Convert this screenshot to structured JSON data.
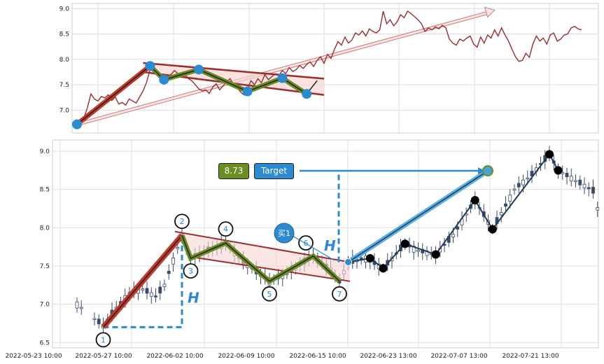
{
  "chart_data": [
    {
      "type": "line",
      "panel": "top",
      "ylim": [
        6.55,
        9.1
      ],
      "yticks": [
        "9.0",
        "8.5",
        "8.0",
        "7.5",
        "7.0"
      ],
      "grid": true,
      "series": [
        {
          "color": "#9b2d2d",
          "values": [
            6.72,
            6.78,
            6.85,
            7.05,
            7.32,
            7.22,
            7.18,
            7.27,
            7.24,
            7.3,
            7.19,
            7.26,
            7.12,
            7.15,
            7.1,
            7.22,
            7.18,
            7.14,
            7.26,
            7.38,
            7.55,
            7.8,
            7.88,
            7.72,
            7.62,
            7.58,
            7.66,
            7.7,
            7.78,
            7.72,
            7.65,
            7.7,
            7.62,
            7.58,
            7.5,
            7.42,
            7.38,
            7.4,
            7.33,
            7.45,
            7.52,
            7.4,
            7.48,
            7.56,
            7.62,
            7.5,
            7.44,
            7.36,
            7.3,
            7.42,
            7.58,
            7.5,
            7.62,
            7.54,
            7.7,
            7.6,
            7.66,
            7.72,
            7.68,
            7.78,
            7.72,
            7.84,
            7.76,
            7.8,
            7.88,
            7.82,
            7.9,
            7.95,
            7.86,
            7.98,
            8.05,
            7.92,
            8.1,
            8.02,
            8.2,
            8.35,
            8.28,
            8.44,
            8.32,
            8.38,
            8.52,
            8.48,
            8.56,
            8.46,
            8.6,
            8.55,
            8.52,
            8.58,
            8.95,
            8.7,
            8.78,
            8.66,
            8.74,
            8.88,
            8.82,
            8.95,
            8.9,
            8.84,
            8.78,
            8.7,
            8.55,
            8.62,
            8.58,
            8.64,
            8.6,
            8.67,
            8.62,
            8.4,
            8.32,
            8.28,
            8.4,
            8.36,
            8.42,
            8.46,
            8.3,
            8.24,
            8.44,
            8.32,
            8.48,
            8.42,
            8.58,
            8.46,
            8.62,
            8.48,
            8.36,
            8.2,
            8.05,
            7.96,
            7.98,
            8.12,
            8.04,
            8.3,
            8.46,
            8.36,
            8.42,
            8.3,
            8.48,
            8.52,
            8.36,
            8.4,
            8.48,
            8.5,
            8.62,
            8.65,
            8.6,
            8.58
          ]
        }
      ],
      "pattern_points": [
        [
          0,
          6.72
        ],
        [
          21,
          7.87
        ],
        [
          25,
          7.6
        ],
        [
          35,
          7.8
        ],
        [
          49,
          7.37
        ],
        [
          59,
          7.63
        ],
        [
          66,
          7.32
        ]
      ],
      "channel_upper": [
        [
          19,
          7.93
        ],
        [
          71,
          7.62
        ]
      ],
      "channel_lower": [
        [
          19,
          7.75
        ],
        [
          71,
          7.3
        ]
      ],
      "target_arrow": [
        [
          0,
          6.72
        ],
        [
          120,
          8.97
        ]
      ]
    },
    {
      "type": "candlestick",
      "panel": "bottom",
      "ylim": [
        6.45,
        9.15
      ],
      "yticks": [
        "9.0",
        "8.5",
        "8.0",
        "7.5",
        "7.0",
        "6.5"
      ],
      "xticks": [
        "2022-05-23 10:00",
        "2022-05-27 10:00",
        "2022-06-02 10:00",
        "2022-06-09 10:00",
        "2022-06-15 10:00",
        "2022-06-23 13:00",
        "2022-07-07 13:00",
        "2022-07-21 13:00"
      ],
      "grid": true,
      "pattern_points": [
        {
          "label": "1",
          "x": 6,
          "y": 6.7
        },
        {
          "label": "2",
          "x": 24,
          "y": 7.9
        },
        {
          "label": "3",
          "x": 26,
          "y": 7.6
        },
        {
          "label": "4",
          "x": 34,
          "y": 7.8
        },
        {
          "label": "5",
          "x": 44,
          "y": 7.3
        },
        {
          "label": "6",
          "x": 54,
          "y": 7.63
        },
        {
          "label": "7",
          "x": 60,
          "y": 7.3
        }
      ],
      "breakout_point": {
        "x": 62,
        "y": 7.55
      },
      "target": {
        "value": "8.73",
        "label": "Target"
      },
      "buy_label": "买1",
      "height_label": "H",
      "black_points": [
        [
          67,
          7.6
        ],
        [
          70,
          7.47
        ],
        [
          75,
          7.79
        ],
        [
          82,
          7.65
        ],
        [
          91,
          8.36
        ],
        [
          95,
          7.98
        ],
        [
          108,
          8.96
        ],
        [
          110,
          8.75
        ]
      ]
    }
  ]
}
